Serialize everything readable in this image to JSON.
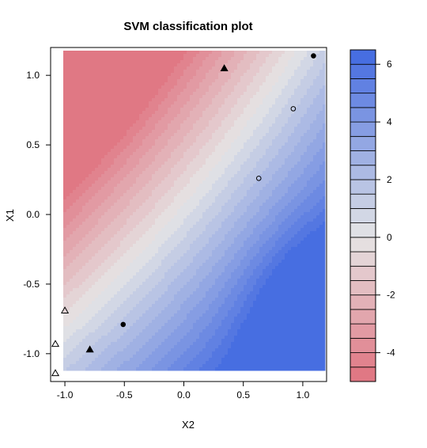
{
  "chart_data": {
    "type": "heatmap",
    "title": "SVM classification plot",
    "xlabel": "X2",
    "ylabel": "X1",
    "xlim": [
      -1.12,
      1.2
    ],
    "ylim": [
      -1.2,
      1.2
    ],
    "x_ticks": [
      -1.0,
      -0.5,
      0.0,
      0.5,
      1.0
    ],
    "x_tick_labels": [
      "-1.0",
      "-0.5",
      "0.0",
      "0.5",
      "1.0"
    ],
    "y_ticks": [
      -1.0,
      -0.5,
      0.0,
      0.5,
      1.0
    ],
    "y_tick_labels": [
      "-1.0",
      "-0.5",
      "0.0",
      "0.5",
      "1.0"
    ],
    "grid": false,
    "colorbar": {
      "position": "right",
      "range": [
        -5,
        6.5
      ],
      "levels": [
        -5,
        -4.5,
        -4,
        -3.5,
        -3,
        -2.5,
        -2,
        -1.5,
        -1,
        -0.5,
        0,
        0.5,
        1,
        1.5,
        2,
        2.5,
        3,
        3.5,
        4,
        4.5,
        5,
        5.5,
        6,
        6.5
      ],
      "ticks": [
        -4,
        -2,
        0,
        2,
        4,
        6
      ],
      "tick_labels": [
        "-4",
        "-2",
        "0",
        "2",
        "4",
        "6"
      ],
      "color_low": "#e0727f",
      "color_mid": "#e5e5e5",
      "color_high": "#4169e1"
    },
    "points": [
      {
        "x": 1.09,
        "y": 1.14,
        "class": "positive",
        "support_vector": false
      },
      {
        "x": 0.34,
        "y": 1.05,
        "class": "negative",
        "support_vector": false
      },
      {
        "x": 0.92,
        "y": 0.76,
        "class": "positive",
        "support_vector": true
      },
      {
        "x": 0.63,
        "y": 0.26,
        "class": "positive",
        "support_vector": true
      },
      {
        "x": -1.0,
        "y": -0.69,
        "class": "negative",
        "support_vector": true
      },
      {
        "x": -0.51,
        "y": -0.79,
        "class": "positive",
        "support_vector": false
      },
      {
        "x": -1.08,
        "y": -0.93,
        "class": "negative",
        "support_vector": true
      },
      {
        "x": -0.79,
        "y": -0.97,
        "class": "negative",
        "support_vector": false
      },
      {
        "x": -1.08,
        "y": -1.14,
        "class": "negative",
        "support_vector": true
      }
    ]
  }
}
